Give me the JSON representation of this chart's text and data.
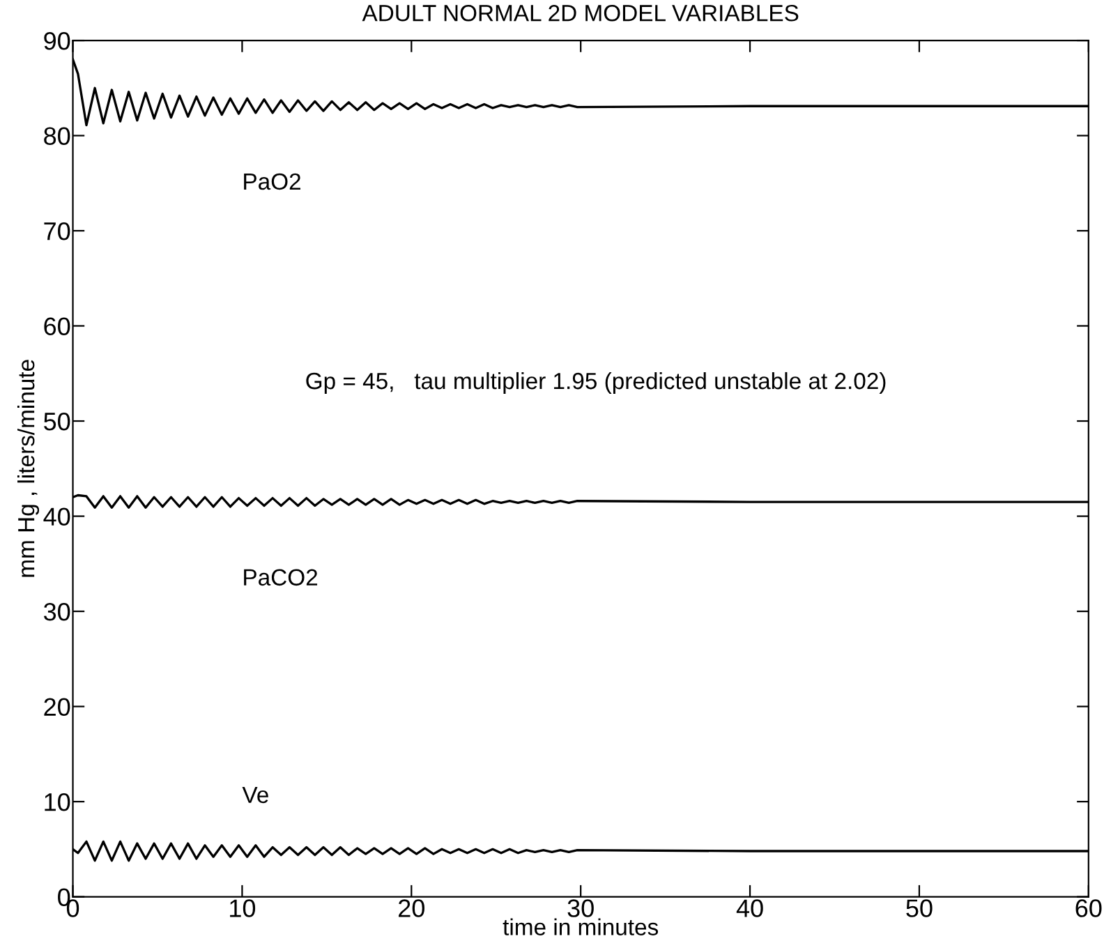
{
  "chart_data": {
    "type": "line",
    "title": "ADULT NORMAL 2D MODEL VARIABLES",
    "xlabel": "time in minutes",
    "ylabel": "mm Hg , liters/minute",
    "annotations": [
      "Gp = 45,   tau multiplier 1.95 (predicted unstable at 2.02)"
    ],
    "x": [
      0,
      0.3,
      0.8,
      1.3,
      1.8,
      2.3,
      2.8,
      3.3,
      3.8,
      4.3,
      4.8,
      5.3,
      5.8,
      6.3,
      6.8,
      7.3,
      7.8,
      8.3,
      8.8,
      9.3,
      9.8,
      10.3,
      10.8,
      11.3,
      11.8,
      12.3,
      12.8,
      13.3,
      13.8,
      14.3,
      14.8,
      15.3,
      15.8,
      16.3,
      16.8,
      17.3,
      17.8,
      18.3,
      18.8,
      19.3,
      19.8,
      20.3,
      20.8,
      21.3,
      21.8,
      22.3,
      22.8,
      23.3,
      23.8,
      24.3,
      24.8,
      25.3,
      25.8,
      26.3,
      26.8,
      27.3,
      27.8,
      28.3,
      28.8,
      29.3,
      29.8,
      40,
      60
    ],
    "series": [
      {
        "name": "PaO2",
        "color": "#000000",
        "values": [
          88.0,
          86.5,
          81.1,
          85.0,
          81.3,
          84.8,
          81.5,
          84.6,
          81.6,
          84.5,
          81.8,
          84.4,
          81.9,
          84.2,
          82.0,
          84.1,
          82.1,
          84.0,
          82.2,
          83.9,
          82.3,
          83.9,
          82.4,
          83.8,
          82.4,
          83.7,
          82.5,
          83.7,
          82.6,
          83.6,
          82.6,
          83.6,
          82.7,
          83.5,
          82.7,
          83.5,
          82.7,
          83.4,
          82.8,
          83.4,
          82.8,
          83.4,
          82.8,
          83.3,
          82.9,
          83.3,
          82.9,
          83.3,
          82.9,
          83.3,
          82.9,
          83.2,
          83.0,
          83.2,
          83.0,
          83.2,
          83.0,
          83.2,
          83.0,
          83.2,
          83.0,
          83.1,
          83.1
        ]
      },
      {
        "name": "PaCO2",
        "color": "#000000",
        "values": [
          42.0,
          42.2,
          42.1,
          40.9,
          42.1,
          40.9,
          42.1,
          40.9,
          42.1,
          40.9,
          42.0,
          41.0,
          42.0,
          41.0,
          42.0,
          41.0,
          42.0,
          41.0,
          42.0,
          41.0,
          41.9,
          41.1,
          41.9,
          41.1,
          41.9,
          41.1,
          41.9,
          41.1,
          41.9,
          41.1,
          41.8,
          41.2,
          41.8,
          41.2,
          41.8,
          41.2,
          41.8,
          41.2,
          41.8,
          41.2,
          41.7,
          41.3,
          41.7,
          41.3,
          41.7,
          41.3,
          41.7,
          41.3,
          41.7,
          41.3,
          41.6,
          41.4,
          41.6,
          41.4,
          41.6,
          41.4,
          41.6,
          41.4,
          41.6,
          41.4,
          41.6,
          41.5,
          41.5
        ]
      },
      {
        "name": "Ve",
        "color": "#000000",
        "values": [
          5.0,
          4.6,
          5.8,
          3.8,
          5.8,
          3.8,
          5.8,
          3.8,
          5.6,
          4.0,
          5.6,
          4.0,
          5.6,
          4.0,
          5.6,
          4.0,
          5.4,
          4.2,
          5.4,
          4.2,
          5.4,
          4.2,
          5.4,
          4.2,
          5.2,
          4.4,
          5.2,
          4.4,
          5.2,
          4.4,
          5.2,
          4.4,
          5.2,
          4.4,
          5.1,
          4.5,
          5.1,
          4.5,
          5.1,
          4.5,
          5.1,
          4.5,
          5.1,
          4.5,
          5.0,
          4.6,
          5.0,
          4.6,
          5.0,
          4.6,
          5.0,
          4.6,
          5.0,
          4.6,
          4.9,
          4.7,
          4.9,
          4.7,
          4.9,
          4.7,
          4.9,
          4.8,
          4.8
        ]
      }
    ],
    "xlim": [
      0,
      60
    ],
    "ylim": [
      0,
      90
    ],
    "xticks": [
      0,
      10,
      20,
      30,
      40,
      50,
      60
    ],
    "yticks": [
      0,
      10,
      20,
      30,
      40,
      50,
      60,
      70,
      80,
      90
    ],
    "grid": false,
    "legend": false,
    "marker": "none",
    "line_style": "solid"
  }
}
